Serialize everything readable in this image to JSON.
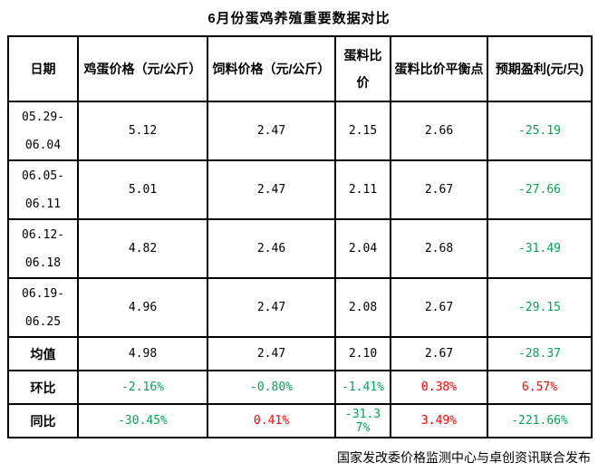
{
  "colors": {
    "black": "#000000",
    "green": "#00a651",
    "red": "#ff0000",
    "border": "#000000"
  },
  "chart_data": {
    "type": "table",
    "title": "6月份蛋鸡养殖重要数据对比",
    "columns": [
      "日期",
      "鸡蛋价格（元/公斤）",
      "饲料价格（元/公斤）",
      "蛋料比价",
      "蛋料比价平衡点",
      "预期盈利(元/只)"
    ],
    "rows": [
      {
        "label_lines": [
          "05.29-",
          "06.04"
        ],
        "cells": [
          {
            "value": "5.12",
            "color": "black"
          },
          {
            "value": "2.47",
            "color": "black"
          },
          {
            "value": "2.15",
            "color": "black"
          },
          {
            "value": "2.66",
            "color": "black"
          },
          {
            "value": "-25.19",
            "color": "green"
          }
        ]
      },
      {
        "label_lines": [
          "06.05-",
          "06.11"
        ],
        "cells": [
          {
            "value": "5.01",
            "color": "black"
          },
          {
            "value": "2.47",
            "color": "black"
          },
          {
            "value": "2.11",
            "color": "black"
          },
          {
            "value": "2.67",
            "color": "black"
          },
          {
            "value": "-27.66",
            "color": "green"
          }
        ]
      },
      {
        "label_lines": [
          "06.12-",
          "06.18"
        ],
        "cells": [
          {
            "value": "4.82",
            "color": "black"
          },
          {
            "value": "2.46",
            "color": "black"
          },
          {
            "value": "2.04",
            "color": "black"
          },
          {
            "value": "2.68",
            "color": "black"
          },
          {
            "value": "-31.49",
            "color": "green"
          }
        ]
      },
      {
        "label_lines": [
          "06.19-",
          "06.25"
        ],
        "cells": [
          {
            "value": "4.96",
            "color": "black"
          },
          {
            "value": "2.47",
            "color": "black"
          },
          {
            "value": "2.08",
            "color": "black"
          },
          {
            "value": "2.67",
            "color": "black"
          },
          {
            "value": "-29.15",
            "color": "green"
          }
        ]
      },
      {
        "label_lines": [
          "均值"
        ],
        "cells": [
          {
            "value": "4.98",
            "color": "black"
          },
          {
            "value": "2.47",
            "color": "black"
          },
          {
            "value": "2.10",
            "color": "black"
          },
          {
            "value": "2.67",
            "color": "black"
          },
          {
            "value": "-28.37",
            "color": "green"
          }
        ]
      },
      {
        "label_lines": [
          "环比"
        ],
        "cells": [
          {
            "value": "-2.16%",
            "color": "green"
          },
          {
            "value": "-0.80%",
            "color": "green"
          },
          {
            "value": "-1.41%",
            "color": "green"
          },
          {
            "value": "0.38%",
            "color": "red"
          },
          {
            "value": "6.57%",
            "color": "red"
          }
        ]
      },
      {
        "label_lines": [
          "同比"
        ],
        "cells": [
          {
            "value": "-30.45%",
            "color": "green"
          },
          {
            "value": "0.41%",
            "color": "red"
          },
          {
            "value": "-31.37%",
            "color": "green"
          },
          {
            "value": "3.49%",
            "color": "red"
          },
          {
            "value": "-221.66%",
            "color": "green"
          }
        ]
      }
    ],
    "source_note": "国家发改委价格监测中心与卓创资讯联合发布"
  }
}
